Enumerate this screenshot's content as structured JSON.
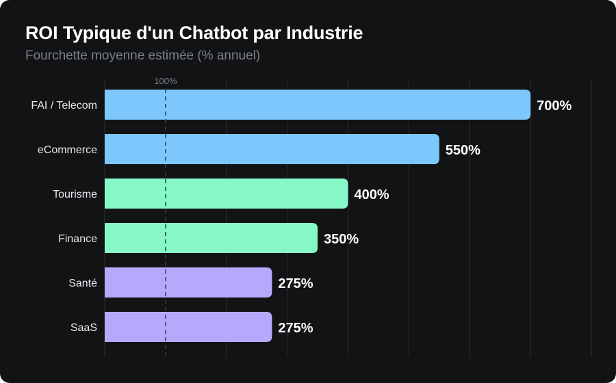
{
  "chart_data": {
    "type": "bar",
    "orientation": "horizontal",
    "title": "ROI Typique d'un Chatbot par Industrie",
    "subtitle": "Fourchette moyenne estimée (% annuel)",
    "categories": [
      "FAI / Telecom",
      "eCommerce",
      "Tourisme",
      "Finance",
      "Santé",
      "SaaS"
    ],
    "values": [
      700,
      550,
      400,
      350,
      275,
      275
    ],
    "data_labels": [
      "700%",
      "550%",
      "400%",
      "350%",
      "275%",
      "275%"
    ],
    "bar_colors": [
      "#7cc8fc",
      "#7cc8fc",
      "#86f7c6",
      "#86f7c6",
      "#b8a8fb",
      "#b8a8fb"
    ],
    "xlim": [
      0,
      800
    ],
    "grid": true,
    "reference_line": {
      "value": 100,
      "label": "100%"
    },
    "colors": {
      "background": "#111315",
      "grid": "#2c2f33",
      "text": "#ffffff",
      "subtitle": "#7d8187"
    }
  }
}
